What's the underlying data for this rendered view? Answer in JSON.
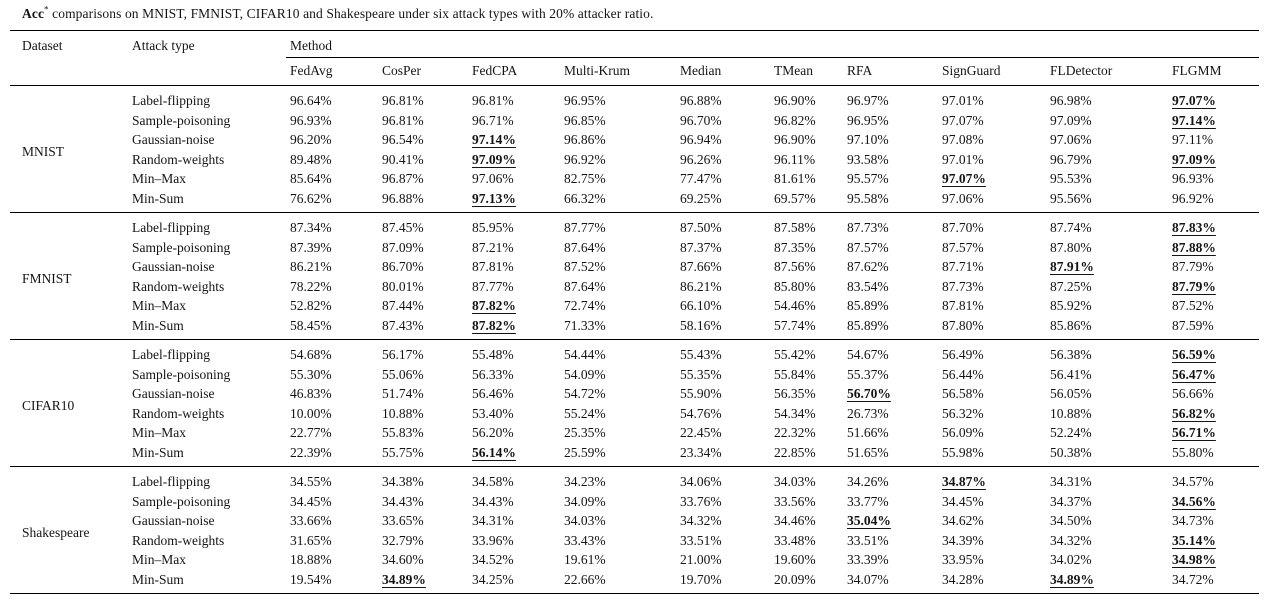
{
  "title": {
    "prefix": "Acc",
    "superscript": "*",
    "rest": " comparisons on MNIST, FMNIST, CIFAR10 and Shakespeare under six attack types with 20% attacker ratio."
  },
  "table": {
    "col_dataset": "Dataset",
    "col_attack": "Attack type",
    "col_method_group": "Method",
    "methods": [
      "FedAvg",
      "CosPer",
      "FedCPA",
      "Multi-Krum",
      "Median",
      "TMean",
      "RFA",
      "SignGuard",
      "FLDetector",
      "FLGMM"
    ],
    "groups": [
      {
        "dataset": "MNIST",
        "rows": [
          {
            "attack": "Label-flipping",
            "values": [
              "96.64%",
              "96.81%",
              "96.81%",
              "96.95%",
              "96.88%",
              "96.90%",
              "96.97%",
              "97.01%",
              "96.98%",
              "97.07%"
            ],
            "best": [
              9
            ]
          },
          {
            "attack": "Sample-poisoning",
            "values": [
              "96.93%",
              "96.81%",
              "96.71%",
              "96.85%",
              "96.70%",
              "96.82%",
              "96.95%",
              "97.07%",
              "97.09%",
              "97.14%"
            ],
            "best": [
              9
            ]
          },
          {
            "attack": "Gaussian-noise",
            "values": [
              "96.20%",
              "96.54%",
              "97.14%",
              "96.86%",
              "96.94%",
              "96.90%",
              "97.10%",
              "97.08%",
              "97.06%",
              "97.11%"
            ],
            "best": [
              2
            ]
          },
          {
            "attack": "Random-weights",
            "values": [
              "89.48%",
              "90.41%",
              "97.09%",
              "96.92%",
              "96.26%",
              "96.11%",
              "93.58%",
              "97.01%",
              "96.79%",
              "97.09%"
            ],
            "best": [
              2,
              9
            ]
          },
          {
            "attack": "Min–Max",
            "values": [
              "85.64%",
              "96.87%",
              "97.06%",
              "82.75%",
              "77.47%",
              "81.61%",
              "95.57%",
              "97.07%",
              "95.53%",
              "96.93%"
            ],
            "best": [
              7
            ]
          },
          {
            "attack": "Min-Sum",
            "values": [
              "76.62%",
              "96.88%",
              "97.13%",
              "66.32%",
              "69.25%",
              "69.57%",
              "95.58%",
              "97.06%",
              "95.56%",
              "96.92%"
            ],
            "best": [
              2
            ]
          }
        ]
      },
      {
        "dataset": "FMNIST",
        "rows": [
          {
            "attack": "Label-flipping",
            "values": [
              "87.34%",
              "87.45%",
              "85.95%",
              "87.77%",
              "87.50%",
              "87.58%",
              "87.73%",
              "87.70%",
              "87.74%",
              "87.83%"
            ],
            "best": [
              9
            ]
          },
          {
            "attack": "Sample-poisoning",
            "values": [
              "87.39%",
              "87.09%",
              "87.21%",
              "87.64%",
              "87.37%",
              "87.35%",
              "87.57%",
              "87.57%",
              "87.80%",
              "87.88%"
            ],
            "best": [
              9
            ]
          },
          {
            "attack": "Gaussian-noise",
            "values": [
              "86.21%",
              "86.70%",
              "87.81%",
              "87.52%",
              "87.66%",
              "87.56%",
              "87.62%",
              "87.71%",
              "87.91%",
              "87.79%"
            ],
            "best": [
              8
            ]
          },
          {
            "attack": "Random-weights",
            "values": [
              "78.22%",
              "80.01%",
              "87.77%",
              "87.64%",
              "86.21%",
              "85.80%",
              "83.54%",
              "87.73%",
              "87.25%",
              "87.79%"
            ],
            "best": [
              9
            ]
          },
          {
            "attack": "Min–Max",
            "values": [
              "52.82%",
              "87.44%",
              "87.82%",
              "72.74%",
              "66.10%",
              "54.46%",
              "85.89%",
              "87.81%",
              "85.92%",
              "87.52%"
            ],
            "best": [
              2
            ]
          },
          {
            "attack": "Min-Sum",
            "values": [
              "58.45%",
              "87.43%",
              "87.82%",
              "71.33%",
              "58.16%",
              "57.74%",
              "85.89%",
              "87.80%",
              "85.86%",
              "87.59%"
            ],
            "best": [
              2
            ]
          }
        ]
      },
      {
        "dataset": "CIFAR10",
        "rows": [
          {
            "attack": "Label-flipping",
            "values": [
              "54.68%",
              "56.17%",
              "55.48%",
              "54.44%",
              "55.43%",
              "55.42%",
              "54.67%",
              "56.49%",
              "56.38%",
              "56.59%"
            ],
            "best": [
              9
            ]
          },
          {
            "attack": "Sample-poisoning",
            "values": [
              "55.30%",
              "55.06%",
              "56.33%",
              "54.09%",
              "55.35%",
              "55.84%",
              "55.37%",
              "56.44%",
              "56.41%",
              "56.47%"
            ],
            "best": [
              9
            ]
          },
          {
            "attack": "Gaussian-noise",
            "values": [
              "46.83%",
              "51.74%",
              "56.46%",
              "54.72%",
              "55.90%",
              "56.35%",
              "56.70%",
              "56.58%",
              "56.05%",
              "56.66%"
            ],
            "best": [
              6
            ]
          },
          {
            "attack": "Random-weights",
            "values": [
              "10.00%",
              "10.88%",
              "53.40%",
              "55.24%",
              "54.76%",
              "54.34%",
              "26.73%",
              "56.32%",
              "10.88%",
              "56.82%"
            ],
            "best": [
              9
            ]
          },
          {
            "attack": "Min–Max",
            "values": [
              "22.77%",
              "55.83%",
              "56.20%",
              "25.35%",
              "22.45%",
              "22.32%",
              "51.66%",
              "56.09%",
              "52.24%",
              "56.71%"
            ],
            "best": [
              9
            ]
          },
          {
            "attack": "Min-Sum",
            "values": [
              "22.39%",
              "55.75%",
              "56.14%",
              "25.59%",
              "23.34%",
              "22.85%",
              "51.65%",
              "55.98%",
              "50.38%",
              "55.80%"
            ],
            "best": [
              2
            ]
          }
        ]
      },
      {
        "dataset": "Shakespeare",
        "rows": [
          {
            "attack": "Label-flipping",
            "values": [
              "34.55%",
              "34.38%",
              "34.58%",
              "34.23%",
              "34.06%",
              "34.03%",
              "34.26%",
              "34.87%",
              "34.31%",
              "34.57%"
            ],
            "best": [
              7
            ]
          },
          {
            "attack": "Sample-poisoning",
            "values": [
              "34.45%",
              "34.43%",
              "34.43%",
              "34.09%",
              "33.76%",
              "33.56%",
              "33.77%",
              "34.45%",
              "34.37%",
              "34.56%"
            ],
            "best": [
              9
            ]
          },
          {
            "attack": "Gaussian-noise",
            "values": [
              "33.66%",
              "33.65%",
              "34.31%",
              "34.03%",
              "34.32%",
              "34.46%",
              "35.04%",
              "34.62%",
              "34.50%",
              "34.73%"
            ],
            "best": [
              6
            ]
          },
          {
            "attack": "Random-weights",
            "values": [
              "31.65%",
              "32.79%",
              "33.96%",
              "33.43%",
              "33.51%",
              "33.48%",
              "33.51%",
              "34.39%",
              "34.32%",
              "35.14%"
            ],
            "best": [
              9
            ]
          },
          {
            "attack": "Min–Max",
            "values": [
              "18.88%",
              "34.60%",
              "34.52%",
              "19.61%",
              "21.00%",
              "19.60%",
              "33.39%",
              "33.95%",
              "34.02%",
              "34.98%"
            ],
            "best": [
              9
            ]
          },
          {
            "attack": "Min-Sum",
            "values": [
              "19.54%",
              "34.89%",
              "34.25%",
              "22.66%",
              "19.70%",
              "20.09%",
              "34.07%",
              "34.28%",
              "34.89%",
              "34.72%"
            ],
            "best": [
              1,
              8
            ]
          }
        ]
      }
    ]
  }
}
